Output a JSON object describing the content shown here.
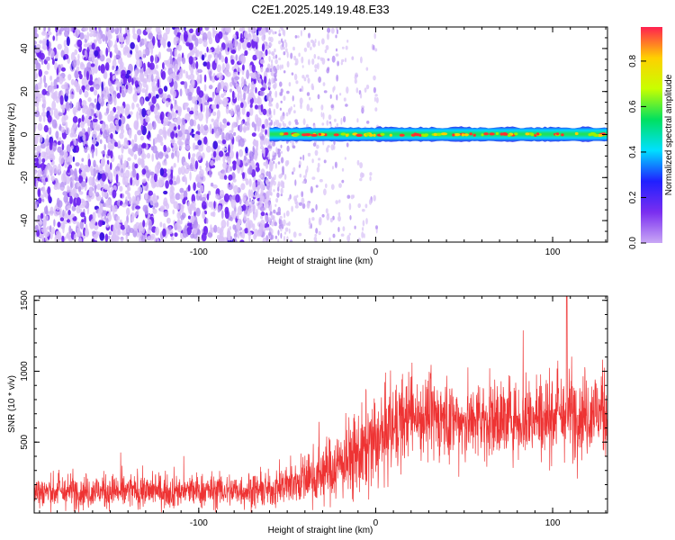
{
  "title": "C2E1.2025.149.19.48.E33",
  "colors": {
    "snr_line": "#ee3333",
    "spectrogram_noise": "#6a1ff0",
    "spectrogram_signal": "#22e69a",
    "colorbar": [
      "#c9a8f5",
      "#7a2ef0",
      "#2020ff",
      "#00e0ff",
      "#00e060",
      "#c8ff00",
      "#ffd000",
      "#ff2050"
    ]
  },
  "chart_data": [
    {
      "type": "heatmap",
      "xlabel": "Height of straight line (km)",
      "ylabel": "Frequency (Hz)",
      "xlim": [
        -193,
        131
      ],
      "ylim": [
        -50,
        50
      ],
      "xticks": [
        -100,
        0,
        100
      ],
      "yticks": [
        -40,
        -20,
        0,
        20,
        40
      ],
      "noise_region_x": [
        -193,
        -60
      ],
      "signal_start_x": -60,
      "signal_frequency": 0,
      "colorbar": {
        "label": "Normalized spectral amplitude",
        "range": [
          0,
          0.95
        ],
        "ticks": [
          0.0,
          0.2,
          0.4,
          0.6,
          0.8
        ]
      }
    },
    {
      "type": "line",
      "xlabel": "Height of straight line (km)",
      "ylabel": "SNR (10 * v/v)",
      "xlim": [
        -193,
        131
      ],
      "ylim": [
        0,
        1530
      ],
      "xticks": [
        -100,
        0,
        100
      ],
      "yticks": [
        500,
        1000,
        1500
      ],
      "envelope": [
        {
          "x": -193,
          "mean": 150,
          "spread": 110
        },
        {
          "x": -60,
          "mean": 160,
          "spread": 110
        },
        {
          "x": -30,
          "mean": 280,
          "spread": 190
        },
        {
          "x": 0,
          "mean": 480,
          "spread": 320
        },
        {
          "x": 20,
          "mean": 700,
          "spread": 260
        },
        {
          "x": 50,
          "mean": 640,
          "spread": 260
        },
        {
          "x": 131,
          "mean": 720,
          "spread": 280
        }
      ],
      "peak": {
        "x": 108,
        "value": 1530
      }
    }
  ]
}
